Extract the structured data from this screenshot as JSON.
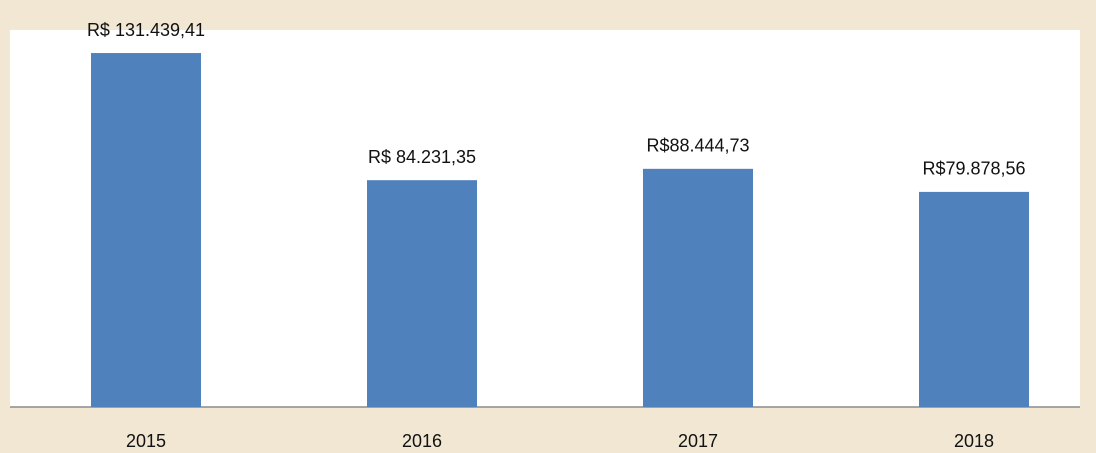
{
  "chart_data": {
    "type": "bar",
    "categories": [
      "2015",
      "2016",
      "2017",
      "2018"
    ],
    "values": [
      131439.41,
      84231.35,
      88444.73,
      79878.56
    ],
    "value_labels": [
      "R$ 131.439,41",
      "R$ 84.231,35",
      "R$88.444,73",
      "R$79.878,56"
    ],
    "color": "#4f81bd",
    "ylim": [
      0,
      140000
    ]
  }
}
